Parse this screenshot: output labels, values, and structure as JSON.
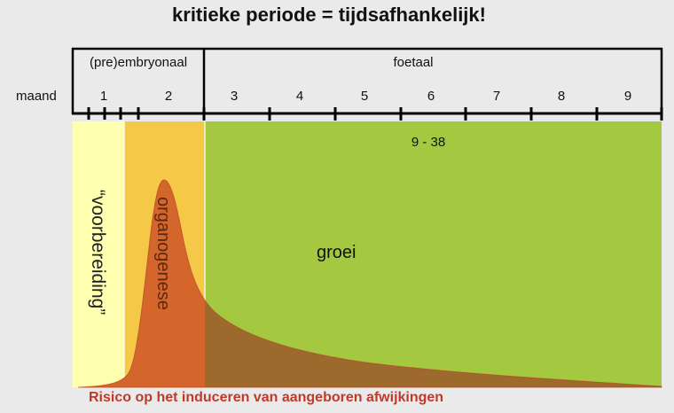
{
  "title": "kritieke periode = tijdsafhankelijk!",
  "timeline": {
    "month_label": "maand",
    "phases": [
      {
        "label": "(pre)embryonaal"
      },
      {
        "label": "foetaal"
      }
    ],
    "months": [
      "1",
      "2",
      "3",
      "4",
      "5",
      "6",
      "7",
      "8",
      "9"
    ]
  },
  "stages": {
    "preparation": "“voorbereiding”",
    "organogenesis": "organogenese",
    "growth": "groei",
    "growth_range": "9 - 38"
  },
  "caption": "Risico op het induceren van aangeboren afwijkingen",
  "colors": {
    "background": "#eaeaea",
    "preparation_zone": "#ffffb0",
    "organogenesis_zone": "#f6c848",
    "growth_zone": "#a4c83f",
    "risk_curve_embryonal": "#d4662b",
    "risk_curve_fetal": "#9c6a2d",
    "caption": "#c0392b"
  }
}
